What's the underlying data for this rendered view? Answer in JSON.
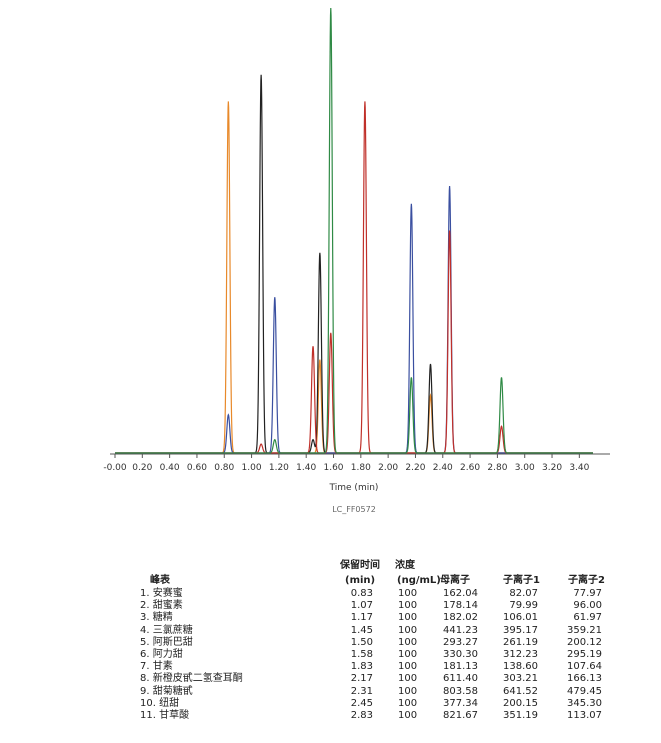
{
  "chart_data": {
    "type": "line",
    "xlabel": "Time (min)",
    "caption": "LC_FF0572",
    "xlim": [
      0,
      3.5
    ],
    "x_ticks": [
      "-0.00",
      "0.20",
      "0.40",
      "0.60",
      "0.80",
      "1.00",
      "1.20",
      "1.40",
      "1.60",
      "1.80",
      "2.00",
      "2.20",
      "2.40",
      "2.60",
      "2.80",
      "3.00",
      "3.20",
      "3.40"
    ],
    "series_colors": [
      "#e8892a",
      "#222222",
      "#3a4fa0",
      "#c0302a",
      "#2f8a45"
    ],
    "peaks": [
      {
        "series": 0,
        "t": 0.83,
        "h": 0.79
      },
      {
        "series": 2,
        "t": 0.83,
        "h": 0.086
      },
      {
        "series": 1,
        "t": 1.07,
        "h": 0.85
      },
      {
        "series": 3,
        "t": 1.07,
        "h": 0.02
      },
      {
        "series": 2,
        "t": 1.17,
        "h": 0.35
      },
      {
        "series": 4,
        "t": 1.17,
        "h": 0.03
      },
      {
        "series": 3,
        "t": 1.45,
        "h": 0.24
      },
      {
        "series": 1,
        "t": 1.45,
        "h": 0.03
      },
      {
        "series": 0,
        "t": 1.5,
        "h": 0.21
      },
      {
        "series": 1,
        "t": 1.5,
        "h": 0.45
      },
      {
        "series": 3,
        "t": 1.58,
        "h": 0.27
      },
      {
        "series": 4,
        "t": 1.58,
        "h": 1.0
      },
      {
        "series": 3,
        "t": 1.83,
        "h": 0.79
      },
      {
        "series": 2,
        "t": 2.17,
        "h": 0.56
      },
      {
        "series": 4,
        "t": 2.17,
        "h": 0.17
      },
      {
        "series": 1,
        "t": 2.31,
        "h": 0.2
      },
      {
        "series": 0,
        "t": 2.31,
        "h": 0.13
      },
      {
        "series": 2,
        "t": 2.45,
        "h": 0.6
      },
      {
        "series": 3,
        "t": 2.45,
        "h": 0.5
      },
      {
        "series": 4,
        "t": 2.83,
        "h": 0.17
      },
      {
        "series": 3,
        "t": 2.83,
        "h": 0.06
      }
    ]
  },
  "table": {
    "title": "峰表",
    "headers": {
      "rt_line1": "保留时间",
      "rt_line2": "(min)",
      "conc_line1": "浓度",
      "conc_line2": "(ng/mL)",
      "parent": "母离子",
      "daughter1": "子离子1",
      "daughter2": "子离子2"
    },
    "rows": [
      {
        "name": "1. 安赛蜜",
        "rt": "0.83",
        "conc": "100",
        "parent": "162.04",
        "d1": "82.07",
        "d2": "77.97"
      },
      {
        "name": "2. 甜蜜素",
        "rt": "1.07",
        "conc": "100",
        "parent": "178.14",
        "d1": "79.99",
        "d2": "96.00"
      },
      {
        "name": "3. 糖精",
        "rt": "1.17",
        "conc": "100",
        "parent": "182.02",
        "d1": "106.01",
        "d2": "61.97"
      },
      {
        "name": "4. 三氯蔗糖",
        "rt": "1.45",
        "conc": "100",
        "parent": "441.23",
        "d1": "395.17",
        "d2": "359.21"
      },
      {
        "name": "5. 阿斯巴甜",
        "rt": "1.50",
        "conc": "100",
        "parent": "293.27",
        "d1": "261.19",
        "d2": "200.12"
      },
      {
        "name": "6. 阿力甜",
        "rt": "1.58",
        "conc": "100",
        "parent": "330.30",
        "d1": "312.23",
        "d2": "295.19"
      },
      {
        "name": "7. 甘素",
        "rt": "1.83",
        "conc": "100",
        "parent": "181.13",
        "d1": "138.60",
        "d2": "107.64"
      },
      {
        "name": "8. 新橙皮甙二氢查耳酮",
        "rt": "2.17",
        "conc": "100",
        "parent": "611.40",
        "d1": "303.21",
        "d2": "166.13"
      },
      {
        "name": "9. 甜菊糖甙",
        "rt": "2.31",
        "conc": "100",
        "parent": "803.58",
        "d1": "641.52",
        "d2": "479.45"
      },
      {
        "name": "10. 纽甜",
        "rt": "2.45",
        "conc": "100",
        "parent": "377.34",
        "d1": "200.15",
        "d2": "345.30"
      },
      {
        "name": "11. 甘草酸",
        "rt": "2.83",
        "conc": "100",
        "parent": "821.67",
        "d1": "351.19",
        "d2": "113.07"
      }
    ]
  }
}
